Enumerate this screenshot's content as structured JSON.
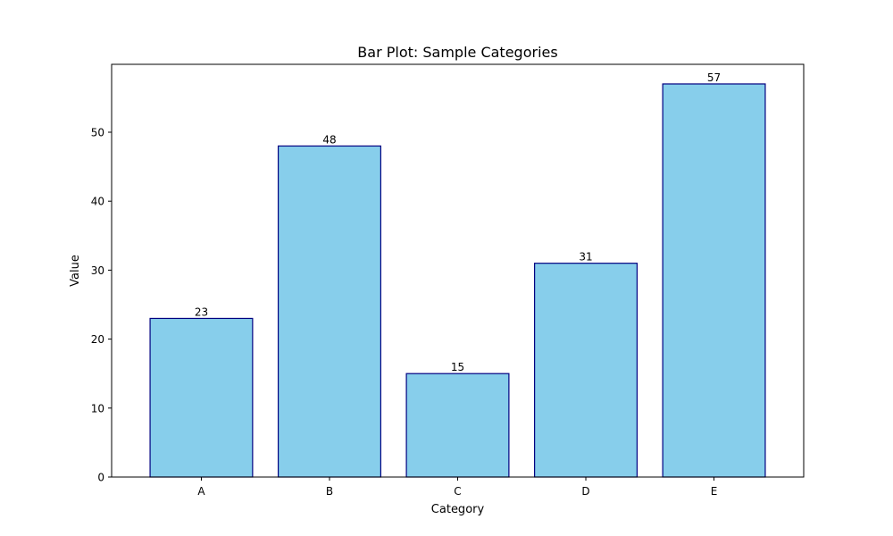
{
  "chart_data": {
    "type": "bar",
    "title": "Bar Plot: Sample Categories",
    "xlabel": "Category",
    "ylabel": "Value",
    "categories": [
      "A",
      "B",
      "C",
      "D",
      "E"
    ],
    "values": [
      23,
      48,
      15,
      31,
      57
    ],
    "data_labels": [
      "23",
      "48",
      "15",
      "31",
      "57"
    ],
    "ylim": [
      0,
      60
    ],
    "yticks": [
      0,
      10,
      20,
      30,
      40,
      50
    ],
    "ytick_labels": [
      "0",
      "10",
      "20",
      "30",
      "40",
      "50"
    ],
    "grid": false,
    "legend": "none",
    "colors": {
      "bar_fill": "#87CEEB",
      "bar_edge": "#000080",
      "axes": "#000000"
    }
  }
}
